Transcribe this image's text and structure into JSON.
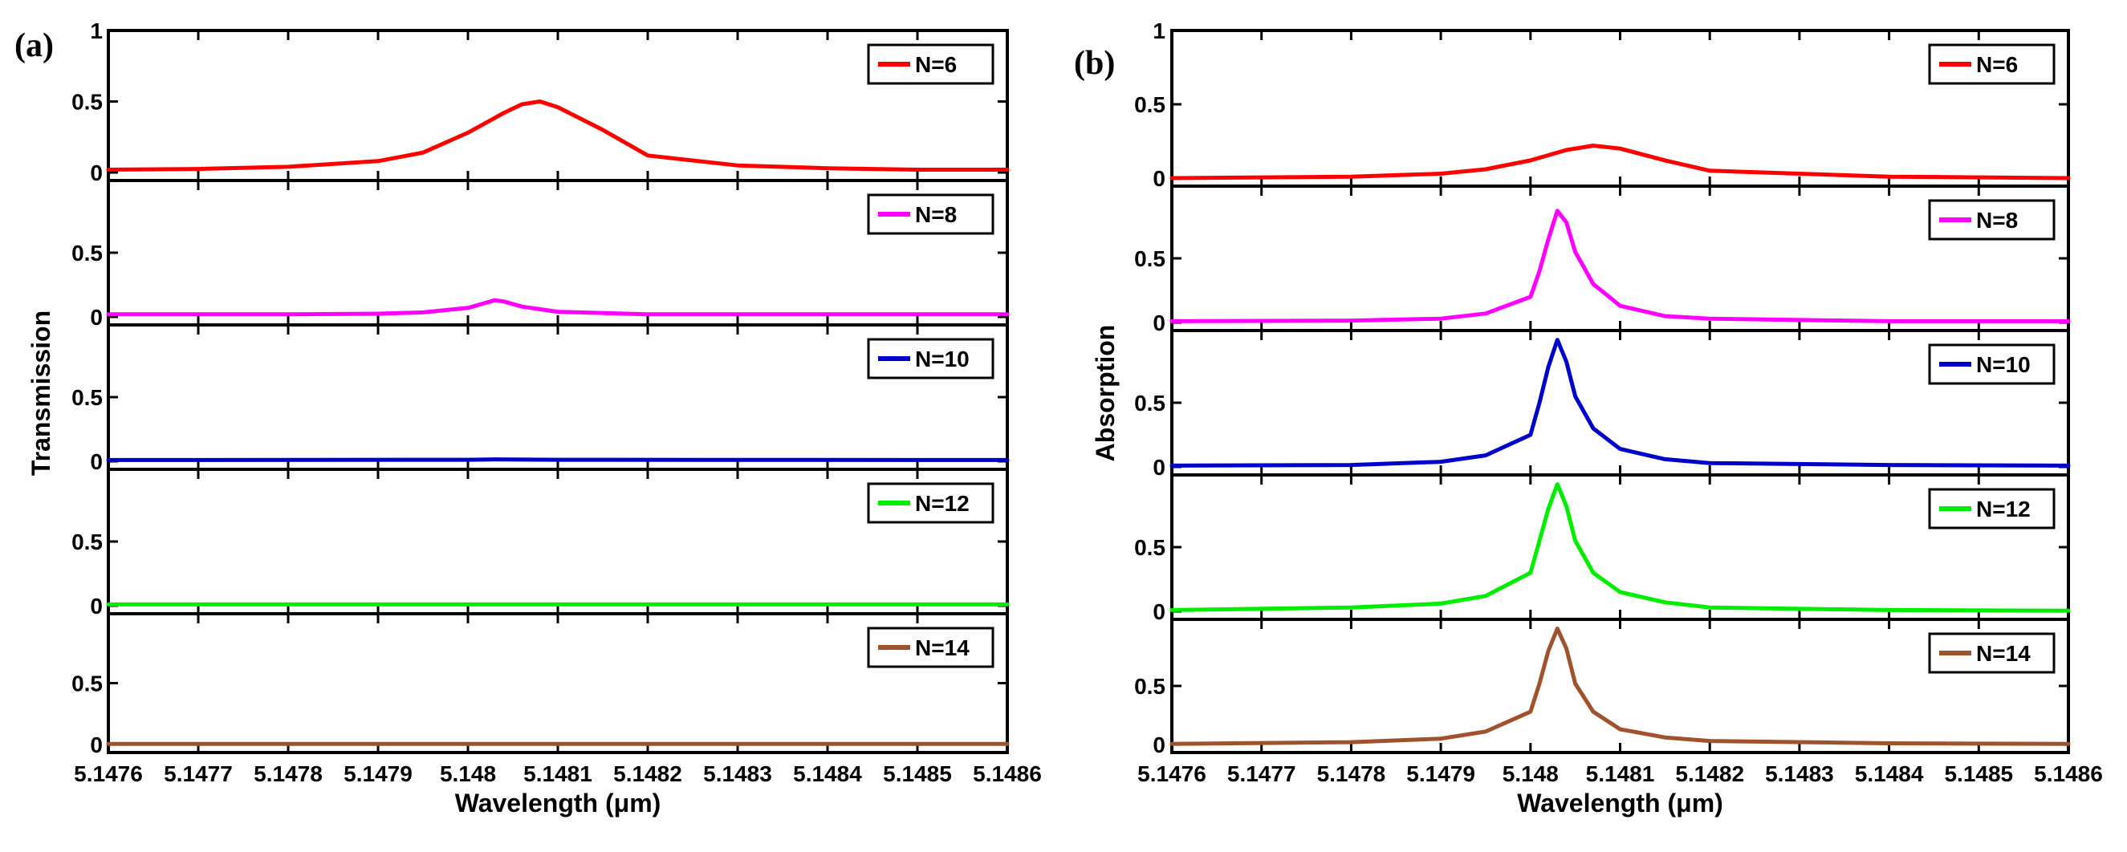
{
  "chart_data": [
    {
      "panel_label": "(a)",
      "type": "line",
      "xlabel": "Wavelength (μm)",
      "ylabel": "Transmission",
      "xlim": [
        5.1476,
        5.1486
      ],
      "x_ticks": [
        "5.1476",
        "5.1477",
        "5.1478",
        "5.1479",
        "5.148",
        "5.1481",
        "5.1482",
        "5.1483",
        "5.1484",
        "5.1485",
        "5.1486"
      ],
      "legend_placement": "top-right",
      "subplots": [
        {
          "name": "N=6",
          "color": "#ff0000",
          "ylim": [
            0,
            1
          ],
          "y_ticks": [
            "0",
            "0.5",
            "1"
          ],
          "x": [
            5.1476,
            5.1477,
            5.1478,
            5.1479,
            5.14795,
            5.148,
            5.14802,
            5.14804,
            5.14806,
            5.14808,
            5.1481,
            5.14815,
            5.1482,
            5.1483,
            5.1484,
            5.1485,
            5.1486
          ],
          "y": [
            0.02,
            0.025,
            0.04,
            0.08,
            0.14,
            0.28,
            0.35,
            0.42,
            0.48,
            0.5,
            0.46,
            0.3,
            0.12,
            0.05,
            0.03,
            0.02,
            0.02
          ]
        },
        {
          "name": "N=8",
          "color": "#ff00ff",
          "ylim": [
            0,
            1
          ],
          "y_ticks": [
            "0",
            "0.5"
          ],
          "x": [
            5.1476,
            5.1478,
            5.1479,
            5.14795,
            5.148,
            5.14802,
            5.14803,
            5.14804,
            5.14806,
            5.1481,
            5.1482,
            5.1484,
            5.1486
          ],
          "y": [
            0.02,
            0.02,
            0.025,
            0.035,
            0.07,
            0.11,
            0.13,
            0.12,
            0.08,
            0.04,
            0.02,
            0.02,
            0.02
          ]
        },
        {
          "name": "N=10",
          "color": "#0000cc",
          "ylim": [
            0,
            1
          ],
          "y_ticks": [
            "0",
            "0.5"
          ],
          "x": [
            5.1476,
            5.148,
            5.14803,
            5.1481,
            5.1486
          ],
          "y": [
            0.01,
            0.012,
            0.015,
            0.012,
            0.01
          ]
        },
        {
          "name": "N=12",
          "color": "#00ee00",
          "ylim": [
            0,
            1
          ],
          "y_ticks": [
            "0",
            "0.5"
          ],
          "x": [
            5.1476,
            5.1486
          ],
          "y": [
            0.01,
            0.01
          ]
        },
        {
          "name": "N=14",
          "color": "#a0522d",
          "ylim": [
            0,
            1
          ],
          "y_ticks": [
            "0",
            "0.5"
          ],
          "x": [
            5.1476,
            5.1486
          ],
          "y": [
            0.005,
            0.005
          ]
        }
      ]
    },
    {
      "panel_label": "(b)",
      "type": "line",
      "xlabel": "Wavelength (μm)",
      "ylabel": "Absorption",
      "xlim": [
        5.1476,
        5.1486
      ],
      "x_ticks": [
        "5.1476",
        "5.1477",
        "5.1478",
        "5.1479",
        "5.148",
        "5.1481",
        "5.1482",
        "5.1483",
        "5.1484",
        "5.1485",
        "5.1486"
      ],
      "legend_placement": "top-right",
      "subplots": [
        {
          "name": "N=6",
          "color": "#ff0000",
          "ylim": [
            0,
            1
          ],
          "y_ticks": [
            "0",
            "0.5",
            "1"
          ],
          "x": [
            5.1476,
            5.1478,
            5.1479,
            5.14795,
            5.148,
            5.14804,
            5.14807,
            5.1481,
            5.14815,
            5.1482,
            5.1484,
            5.1486
          ],
          "y": [
            0.0,
            0.01,
            0.03,
            0.06,
            0.12,
            0.19,
            0.22,
            0.2,
            0.12,
            0.05,
            0.01,
            0.0
          ]
        },
        {
          "name": "N=8",
          "color": "#ff00ff",
          "ylim": [
            0,
            1
          ],
          "y_ticks": [
            "0",
            "0.5"
          ],
          "x": [
            5.1476,
            5.1478,
            5.1479,
            5.14795,
            5.148,
            5.14801,
            5.14802,
            5.14803,
            5.14804,
            5.14805,
            5.14807,
            5.1481,
            5.14815,
            5.1482,
            5.1484,
            5.1486
          ],
          "y": [
            0.01,
            0.015,
            0.03,
            0.07,
            0.2,
            0.4,
            0.65,
            0.87,
            0.78,
            0.55,
            0.3,
            0.13,
            0.05,
            0.03,
            0.01,
            0.01
          ]
        },
        {
          "name": "N=10",
          "color": "#0000cc",
          "ylim": [
            0,
            1
          ],
          "y_ticks": [
            "0",
            "0.5"
          ],
          "x": [
            5.1476,
            5.1478,
            5.1479,
            5.14795,
            5.148,
            5.14801,
            5.14802,
            5.14803,
            5.14804,
            5.14805,
            5.14807,
            5.1481,
            5.14815,
            5.1482,
            5.1484,
            5.1486
          ],
          "y": [
            0.01,
            0.015,
            0.04,
            0.09,
            0.25,
            0.5,
            0.78,
            0.99,
            0.82,
            0.55,
            0.3,
            0.14,
            0.06,
            0.03,
            0.015,
            0.01
          ]
        },
        {
          "name": "N=12",
          "color": "#00ee00",
          "ylim": [
            0,
            1
          ],
          "y_ticks": [
            "0",
            "0.5"
          ],
          "x": [
            5.1476,
            5.1478,
            5.1479,
            5.14795,
            5.148,
            5.14801,
            5.14802,
            5.14803,
            5.14804,
            5.14805,
            5.14807,
            5.1481,
            5.14815,
            5.1482,
            5.1484,
            5.1486
          ],
          "y": [
            0.01,
            0.03,
            0.06,
            0.12,
            0.3,
            0.55,
            0.8,
            0.99,
            0.82,
            0.55,
            0.3,
            0.15,
            0.07,
            0.03,
            0.01,
            0.005
          ]
        },
        {
          "name": "N=14",
          "color": "#a0522d",
          "ylim": [
            0,
            1
          ],
          "y_ticks": [
            "0",
            "0.5"
          ],
          "x": [
            5.1476,
            5.1478,
            5.1479,
            5.14795,
            5.148,
            5.14801,
            5.14802,
            5.14803,
            5.14804,
            5.14805,
            5.14807,
            5.1481,
            5.14815,
            5.1482,
            5.1484,
            5.1486
          ],
          "y": [
            0.005,
            0.02,
            0.05,
            0.11,
            0.28,
            0.52,
            0.8,
            0.99,
            0.82,
            0.52,
            0.28,
            0.13,
            0.06,
            0.03,
            0.01,
            0.005
          ]
        }
      ]
    }
  ]
}
